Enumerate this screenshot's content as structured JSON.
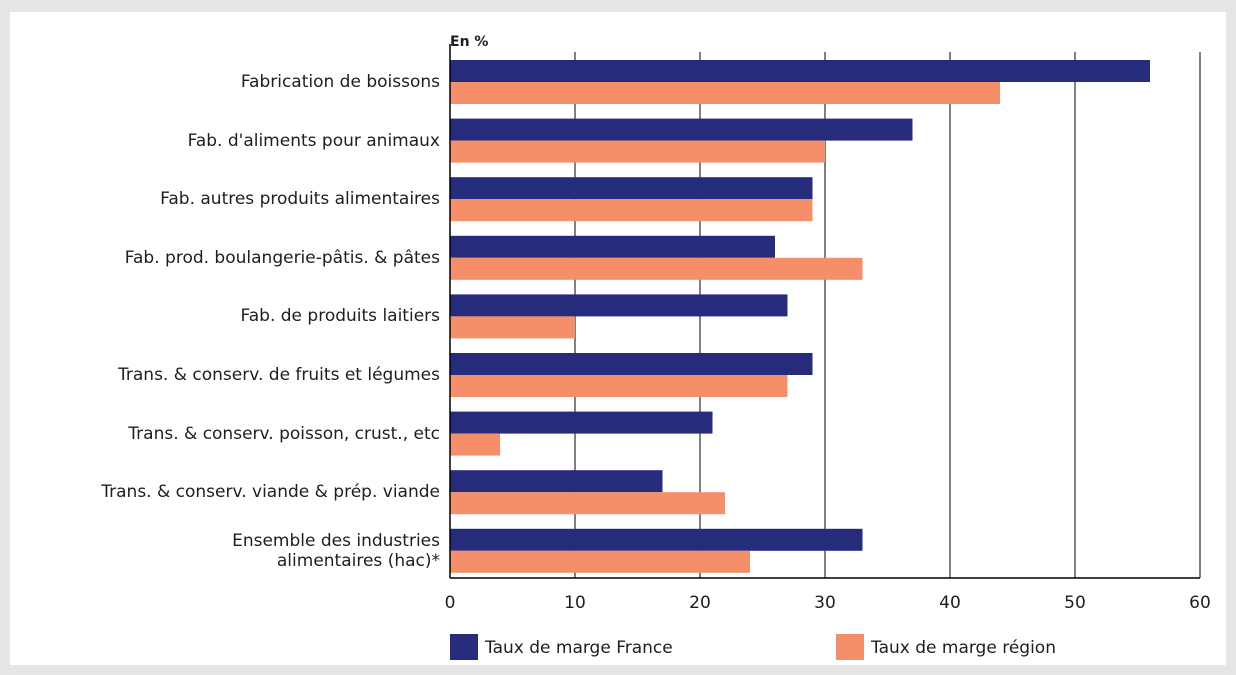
{
  "chart_data": {
    "type": "bar",
    "orientation": "horizontal",
    "y_axis_label": "En %",
    "categories": [
      "Fabrication de boissons",
      "Fab. d'aliments pour animaux",
      "Fab. autres produits alimentaires",
      "Fab. prod. boulangerie-pâtis. & pâtes",
      "Fab. de produits laitiers",
      "Trans. & conserv. de fruits et légumes",
      "Trans. & conserv. poisson, crust., etc",
      "Trans. & conserv. viande & prép. viande",
      "Ensemble des industries\nalimentaires (hac)*"
    ],
    "series": [
      {
        "name": "Taux de marge France",
        "color": "#272b7c",
        "values": [
          56,
          37,
          29,
          26,
          27,
          29,
          21,
          17,
          33
        ]
      },
      {
        "name": "Taux de marge région",
        "color": "#f58f6a",
        "values": [
          44,
          30,
          29,
          33,
          10,
          27,
          4,
          22,
          24
        ]
      }
    ],
    "xlim": [
      0,
      60
    ],
    "xticks": [
      0,
      10,
      20,
      30,
      40,
      50,
      60
    ],
    "grid": true
  }
}
